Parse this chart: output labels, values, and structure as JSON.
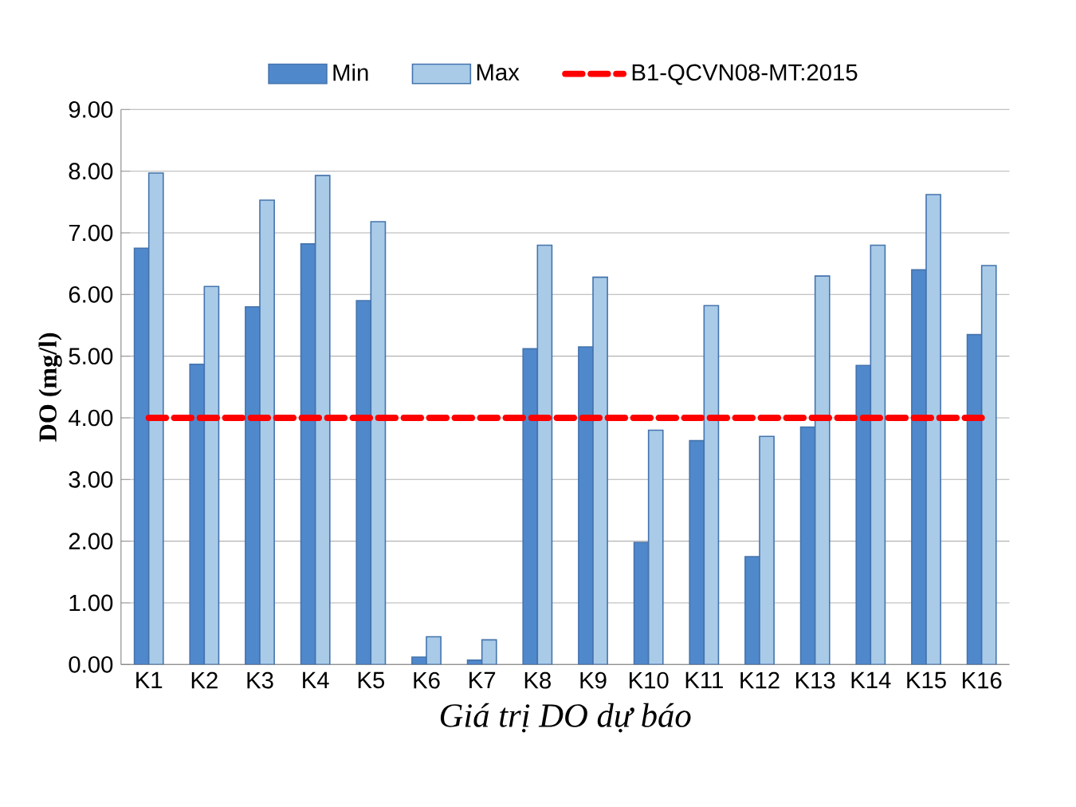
{
  "chart_data": {
    "type": "bar",
    "xlabel": "*Giá trị DO dự báo*",
    "ylabel": "**DO (mg/l)**",
    "categories": [
      "K1",
      "K2",
      "K3",
      "K4",
      "K5",
      "K6",
      "K7",
      "K8",
      "K9",
      "K10",
      "K11",
      "K12",
      "K13",
      "K14",
      "K15",
      "K16"
    ],
    "series": [
      {
        "name": "Min",
        "color": "#5088cc",
        "values": [
          6.75,
          4.87,
          5.8,
          6.82,
          5.9,
          0.12,
          0.07,
          5.12,
          5.15,
          1.98,
          3.63,
          1.75,
          3.85,
          4.85,
          6.4,
          5.35
        ]
      },
      {
        "name": "Max",
        "color": "#a9cbe8",
        "values": [
          7.97,
          6.13,
          7.53,
          7.93,
          7.18,
          0.45,
          0.4,
          6.8,
          6.28,
          3.8,
          5.82,
          3.7,
          6.3,
          6.8,
          7.62,
          6.47
        ]
      },
      {
        "name": "B1-QCVN08-MT:2015",
        "type": "line",
        "line_style": "dashed",
        "color": "#ff0000",
        "values": [
          4,
          4,
          4,
          4,
          4,
          4,
          4,
          4,
          4,
          4,
          4,
          4,
          4,
          4,
          4,
          4
        ]
      }
    ],
    "ylim": [
      0,
      9
    ],
    "yticks": [
      {
        "value": 0,
        "label": "0.00"
      },
      {
        "value": 1,
        "label": "1.00"
      },
      {
        "value": 2,
        "label": "2.00"
      },
      {
        "value": 3,
        "label": "3.00"
      },
      {
        "value": 4,
        "label": "4.00"
      },
      {
        "value": 5,
        "label": "5.00"
      },
      {
        "value": 6,
        "label": "6.00"
      },
      {
        "value": 7,
        "label": "7.00"
      },
      {
        "value": 8,
        "label": "8.00"
      },
      {
        "value": 9,
        "label": "9.00"
      }
    ],
    "grid": "y",
    "legend": "top"
  }
}
